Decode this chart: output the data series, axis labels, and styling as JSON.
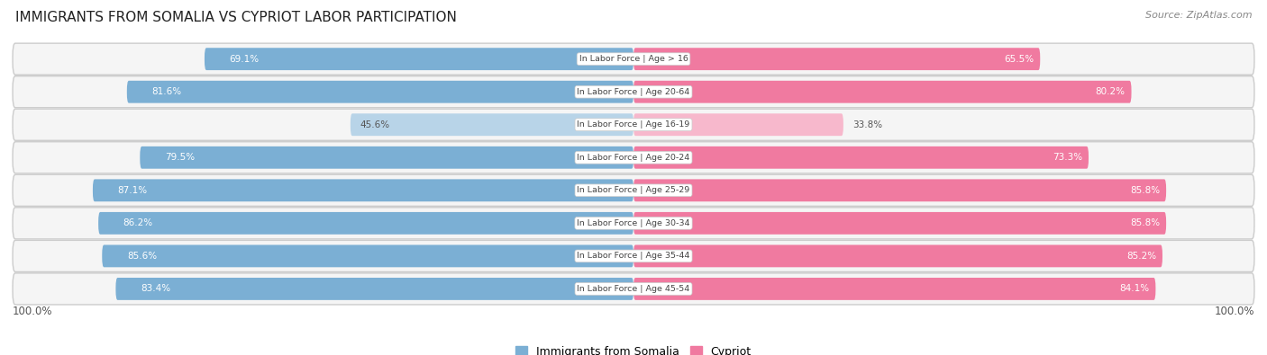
{
  "title": "IMMIGRANTS FROM SOMALIA VS CYPRIOT LABOR PARTICIPATION",
  "source": "Source: ZipAtlas.com",
  "categories": [
    "In Labor Force | Age > 16",
    "In Labor Force | Age 20-64",
    "In Labor Force | Age 16-19",
    "In Labor Force | Age 20-24",
    "In Labor Force | Age 25-29",
    "In Labor Force | Age 30-34",
    "In Labor Force | Age 35-44",
    "In Labor Force | Age 45-54"
  ],
  "somalia_values": [
    69.1,
    81.6,
    45.6,
    79.5,
    87.1,
    86.2,
    85.6,
    83.4
  ],
  "cypriot_values": [
    65.5,
    80.2,
    33.8,
    73.3,
    85.8,
    85.8,
    85.2,
    84.1
  ],
  "somalia_color": "#7bafd4",
  "somalia_color_light": "#b8d4e8",
  "cypriot_color": "#f07aa0",
  "cypriot_color_light": "#f7b8cc",
  "row_bg_color": "#e8e8e8",
  "row_inner_color": "#f5f5f5",
  "max_value": 100.0,
  "bar_height": 0.68,
  "threshold": 50,
  "legend_somalia": "Immigrants from Somalia",
  "legend_cypriot": "Cypriot"
}
